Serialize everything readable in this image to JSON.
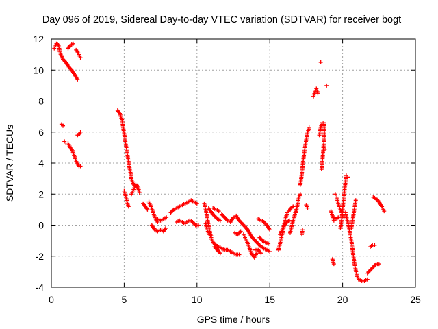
{
  "chart_data": {
    "type": "scatter",
    "title": "Day 096 of 2019, Sidereal Day-to-day VTEC variation (SDTVAR) for receiver bogt",
    "xlabel": "GPS time / hours",
    "ylabel": "SDTVAR / TECUs",
    "xlim": [
      0,
      25
    ],
    "ylim": [
      -4,
      12
    ],
    "grid": true,
    "marker": "plus",
    "x_ticks": [
      0,
      5,
      10,
      15,
      20,
      25
    ],
    "y_ticks": [
      -4,
      -2,
      0,
      2,
      4,
      6,
      8,
      10,
      12
    ],
    "x_tick_labels": [
      "0",
      "5",
      "10",
      "15",
      "20",
      "25"
    ],
    "y_tick_labels": [
      "-4",
      "-2",
      "0",
      "2",
      "4",
      "6",
      "8",
      "10",
      "12"
    ],
    "series": [
      {
        "name": "SDTVAR",
        "color": "#ff0000",
        "segments": [
          [
            [
              0.2,
              11.4
            ],
            [
              0.35,
              11.7
            ],
            [
              0.5,
              11.6
            ],
            [
              0.6,
              11.1
            ],
            [
              0.8,
              10.7
            ],
            [
              1.0,
              10.5
            ],
            [
              1.2,
              10.2
            ],
            [
              1.4,
              10.0
            ],
            [
              1.6,
              9.7
            ],
            [
              1.8,
              9.4
            ]
          ],
          [
            [
              1.15,
              11.4
            ],
            [
              1.3,
              11.6
            ],
            [
              1.5,
              11.7
            ]
          ],
          [
            [
              1.7,
              11.3
            ],
            [
              1.85,
              11.1
            ],
            [
              2.0,
              10.8
            ]
          ],
          [
            [
              0.7,
              6.5
            ],
            [
              0.8,
              6.4
            ]
          ],
          [
            [
              0.9,
              5.4
            ],
            [
              1.0,
              5.3
            ],
            [
              1.15,
              5.3
            ],
            [
              1.3,
              5.0
            ],
            [
              1.45,
              4.8
            ],
            [
              1.6,
              4.4
            ],
            [
              1.75,
              4.0
            ],
            [
              1.9,
              3.8
            ],
            [
              2.0,
              3.8
            ]
          ],
          [
            [
              1.8,
              5.8
            ],
            [
              1.95,
              5.9
            ],
            [
              2.0,
              6.0
            ]
          ],
          [
            [
              4.55,
              7.4
            ],
            [
              4.7,
              7.2
            ],
            [
              4.85,
              6.8
            ],
            [
              4.95,
              6.2
            ],
            [
              5.05,
              5.6
            ],
            [
              5.15,
              5.0
            ],
            [
              5.25,
              4.4
            ],
            [
              5.35,
              3.8
            ],
            [
              5.45,
              3.3
            ],
            [
              5.5,
              3.0
            ],
            [
              5.6,
              2.7
            ],
            [
              5.75,
              2.5
            ],
            [
              5.9,
              2.4
            ]
          ],
          [
            [
              5.0,
              2.2
            ],
            [
              5.1,
              1.9
            ],
            [
              5.2,
              1.5
            ],
            [
              5.3,
              1.2
            ]
          ],
          [
            [
              5.5,
              2.0
            ],
            [
              5.65,
              2.3
            ],
            [
              5.8,
              2.6
            ],
            [
              5.95,
              2.5
            ],
            [
              6.05,
              2.1
            ]
          ],
          [
            [
              6.3,
              1.4
            ],
            [
              6.45,
              1.2
            ],
            [
              6.6,
              1.0
            ]
          ],
          [
            [
              6.7,
              1.5
            ],
            [
              6.85,
              1.2
            ],
            [
              7.0,
              0.8
            ],
            [
              7.15,
              0.4
            ],
            [
              7.3,
              0.2
            ]
          ],
          [
            [
              6.9,
              0.0
            ],
            [
              7.1,
              -0.3
            ],
            [
              7.3,
              -0.4
            ],
            [
              7.5,
              -0.3
            ],
            [
              7.7,
              -0.4
            ],
            [
              7.85,
              -0.2
            ]
          ],
          [
            [
              7.3,
              0.4
            ],
            [
              7.5,
              0.3
            ],
            [
              7.7,
              0.4
            ],
            [
              7.9,
              0.5
            ]
          ],
          [
            [
              8.2,
              0.8
            ],
            [
              8.4,
              1.0
            ],
            [
              8.6,
              1.1
            ],
            [
              8.8,
              1.2
            ],
            [
              9.0,
              1.3
            ],
            [
              9.2,
              1.4
            ],
            [
              9.4,
              1.5
            ],
            [
              9.6,
              1.6
            ],
            [
              9.8,
              1.5
            ],
            [
              10.0,
              1.4
            ]
          ],
          [
            [
              8.6,
              0.2
            ],
            [
              8.8,
              0.3
            ],
            [
              9.0,
              0.2
            ],
            [
              9.2,
              0.1
            ]
          ],
          [
            [
              9.3,
              0.2
            ],
            [
              9.5,
              0.3
            ],
            [
              9.7,
              0.2
            ],
            [
              9.9,
              0.0
            ],
            [
              10.1,
              0.0
            ]
          ],
          [
            [
              10.5,
              1.4
            ],
            [
              10.6,
              1.0
            ],
            [
              10.7,
              0.5
            ],
            [
              10.8,
              0.0
            ],
            [
              10.9,
              -0.5
            ],
            [
              11.0,
              -0.9
            ],
            [
              11.1,
              -1.1
            ],
            [
              11.3,
              -1.3
            ],
            [
              11.5,
              -1.4
            ],
            [
              11.7,
              -1.5
            ],
            [
              11.9,
              -1.6
            ],
            [
              12.1,
              -1.6
            ],
            [
              12.3,
              -1.7
            ],
            [
              12.5,
              -1.8
            ],
            [
              12.7,
              -1.9
            ],
            [
              12.9,
              -1.9
            ]
          ],
          [
            [
              10.6,
              0.1
            ],
            [
              10.7,
              -0.3
            ],
            [
              10.85,
              -0.6
            ],
            [
              11.0,
              -0.7
            ]
          ],
          [
            [
              10.8,
              1.1
            ],
            [
              11.0,
              0.8
            ],
            [
              11.2,
              0.6
            ],
            [
              11.4,
              0.4
            ],
            [
              11.6,
              0.3
            ]
          ],
          [
            [
              11.2,
              -1.4
            ],
            [
              11.4,
              -1.6
            ],
            [
              11.6,
              -1.8
            ]
          ],
          [
            [
              11.1,
              1.1
            ],
            [
              11.3,
              1.0
            ],
            [
              11.5,
              0.9
            ]
          ],
          [
            [
              11.7,
              0.7
            ],
            [
              11.9,
              0.5
            ],
            [
              12.1,
              0.3
            ],
            [
              12.3,
              0.2
            ],
            [
              12.5,
              0.5
            ],
            [
              12.7,
              0.6
            ],
            [
              12.9,
              0.3
            ],
            [
              13.1,
              0.1
            ],
            [
              13.3,
              -0.1
            ],
            [
              13.5,
              -0.3
            ]
          ],
          [
            [
              12.6,
              -0.5
            ],
            [
              12.8,
              -0.6
            ],
            [
              13.0,
              -0.4
            ]
          ],
          [
            [
              13.2,
              -0.6
            ],
            [
              13.35,
              -0.9
            ],
            [
              13.5,
              -1.2
            ],
            [
              13.65,
              -1.6
            ],
            [
              13.8,
              -1.9
            ],
            [
              13.95,
              -2.1
            ],
            [
              14.1,
              -1.8
            ]
          ],
          [
            [
              13.4,
              -0.2
            ],
            [
              13.6,
              -0.5
            ],
            [
              13.8,
              -0.8
            ],
            [
              14.0,
              -1.0
            ],
            [
              14.2,
              -1.2
            ],
            [
              14.4,
              -1.4
            ],
            [
              14.6,
              -1.5
            ],
            [
              14.8,
              -1.6
            ],
            [
              15.0,
              -1.7
            ]
          ],
          [
            [
              14.2,
              0.4
            ],
            [
              14.4,
              0.3
            ],
            [
              14.6,
              0.2
            ],
            [
              14.8,
              0.0
            ],
            [
              15.0,
              -0.3
            ]
          ],
          [
            [
              14.0,
              -1.6
            ],
            [
              14.2,
              -1.6
            ],
            [
              14.4,
              -1.8
            ]
          ],
          [
            [
              14.3,
              -0.8
            ],
            [
              14.5,
              -1.0
            ],
            [
              14.7,
              -1.1
            ],
            [
              14.9,
              -1.2
            ]
          ],
          [
            [
              15.6,
              -1.6
            ],
            [
              15.7,
              -1.2
            ],
            [
              15.8,
              -0.8
            ],
            [
              15.9,
              -0.4
            ],
            [
              16.0,
              0.1
            ],
            [
              16.1,
              0.5
            ],
            [
              16.2,
              0.8
            ]
          ],
          [
            [
              15.7,
              -0.6
            ],
            [
              15.85,
              -0.3
            ],
            [
              16.0,
              0.0
            ],
            [
              16.2,
              0.2
            ],
            [
              16.35,
              0.3
            ]
          ],
          [
            [
              16.4,
              -0.5
            ],
            [
              16.5,
              -0.1
            ],
            [
              16.6,
              0.3
            ],
            [
              16.7,
              0.6
            ],
            [
              16.8,
              1.0
            ]
          ],
          [
            [
              16.3,
              0.9
            ],
            [
              16.45,
              1.1
            ],
            [
              16.6,
              1.2
            ]
          ],
          [
            [
              16.8,
              0.8
            ],
            [
              16.9,
              1.3
            ],
            [
              17.0,
              1.8
            ],
            [
              17.1,
              2.0
            ]
          ],
          [
            [
              17.2,
              -0.6
            ],
            [
              17.25,
              -0.3
            ]
          ],
          [
            [
              17.1,
              2.6
            ],
            [
              17.2,
              3.3
            ],
            [
              17.3,
              4.2
            ],
            [
              17.4,
              4.9
            ],
            [
              17.5,
              5.5
            ],
            [
              17.6,
              6.0
            ],
            [
              17.7,
              6.3
            ]
          ],
          [
            [
              17.5,
              1.3
            ],
            [
              17.6,
              1.1
            ]
          ],
          [
            [
              18.0,
              8.3
            ],
            [
              18.1,
              8.6
            ],
            [
              18.2,
              8.8
            ],
            [
              18.3,
              8.5
            ]
          ],
          [
            [
              18.5,
              10.5
            ]
          ],
          [
            [
              18.4,
              5.8
            ],
            [
              18.5,
              6.3
            ],
            [
              18.6,
              6.6
            ],
            [
              18.7,
              6.6
            ],
            [
              18.75,
              6.2
            ],
            [
              18.75,
              5.7
            ],
            [
              18.7,
              5.2
            ],
            [
              18.65,
              4.6
            ],
            [
              18.6,
              4.0
            ],
            [
              18.55,
              3.6
            ]
          ],
          [
            [
              18.9,
              9.0
            ]
          ],
          [
            [
              18.8,
              4.9
            ]
          ],
          [
            [
              19.2,
              0.9
            ],
            [
              19.3,
              0.6
            ],
            [
              19.4,
              0.3
            ]
          ],
          [
            [
              19.5,
              2.0
            ]
          ],
          [
            [
              19.3,
              -2.2
            ],
            [
              19.4,
              -2.5
            ]
          ],
          [
            [
              19.4,
              0.5
            ],
            [
              19.55,
              0.4
            ],
            [
              19.7,
              0.5
            ]
          ],
          [
            [
              19.6,
              1.8
            ],
            [
              19.7,
              1.4
            ],
            [
              19.8,
              1.1
            ],
            [
              19.9,
              0.9
            ],
            [
              20.0,
              0.6
            ],
            [
              20.1,
              0.5
            ]
          ],
          [
            [
              19.85,
              -0.2
            ],
            [
              19.95,
              0.5
            ],
            [
              20.05,
              1.5
            ],
            [
              20.15,
              2.4
            ],
            [
              20.25,
              3.2
            ],
            [
              20.35,
              3.1
            ]
          ],
          [
            [
              20.2,
              0.8
            ],
            [
              20.3,
              0.4
            ],
            [
              20.4,
              0.0
            ],
            [
              20.5,
              -0.5
            ],
            [
              20.6,
              -1.0
            ],
            [
              20.7,
              -1.7
            ],
            [
              20.8,
              -2.4
            ],
            [
              20.9,
              -2.9
            ],
            [
              21.0,
              -3.3
            ],
            [
              21.1,
              -3.5
            ],
            [
              21.3,
              -3.6
            ],
            [
              21.5,
              -3.6
            ],
            [
              21.7,
              -3.5
            ]
          ],
          [
            [
              20.6,
              -0.2
            ],
            [
              20.7,
              0.4
            ],
            [
              20.8,
              1.0
            ],
            [
              20.9,
              1.6
            ]
          ],
          [
            [
              21.7,
              -3.1
            ],
            [
              21.9,
              -2.9
            ],
            [
              22.1,
              -2.7
            ],
            [
              22.3,
              -2.5
            ],
            [
              22.5,
              -2.5
            ]
          ],
          [
            [
              21.9,
              -1.4
            ],
            [
              22.05,
              -1.3
            ],
            [
              22.2,
              -1.3
            ]
          ],
          [
            [
              22.1,
              1.8
            ],
            [
              22.3,
              1.7
            ],
            [
              22.5,
              1.5
            ],
            [
              22.7,
              1.2
            ],
            [
              22.85,
              0.9
            ]
          ]
        ]
      }
    ]
  }
}
